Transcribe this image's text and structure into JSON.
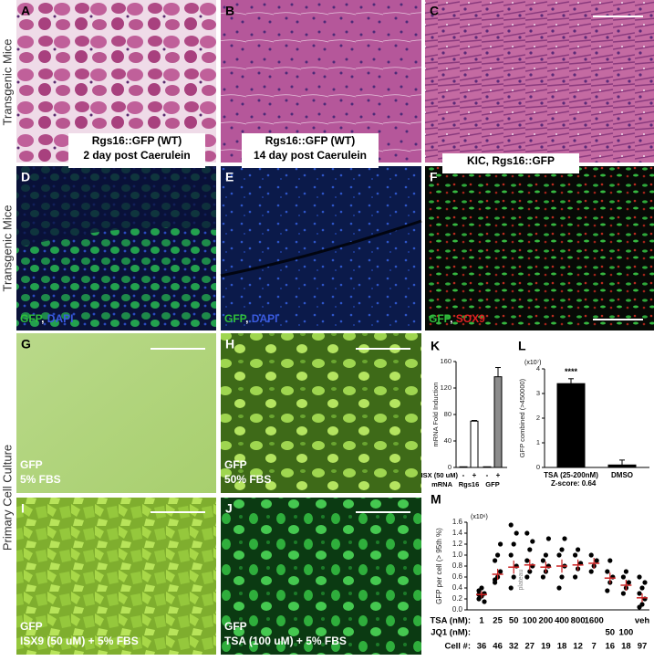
{
  "row_labels": [
    "Transgenic Mice",
    "Transgenic Mice",
    "Primary Cell Culture"
  ],
  "images": [
    {
      "letter": "A"
    },
    {
      "letter": "B"
    },
    {
      "letter": "C"
    },
    {
      "letter": "D",
      "caption": [
        "Rgs16::GFP (WT)",
        "2 day post Caerulein"
      ],
      "stain": [
        {
          "text": "GFP",
          "color": "#2fbf3a"
        },
        {
          "text": ", ",
          "color": "#ffffff"
        },
        {
          "text": "DAPI",
          "color": "#3a5adf"
        }
      ]
    },
    {
      "letter": "E",
      "caption": [
        "Rgs16::GFP (WT)",
        "14 day post Caerulein"
      ],
      "stain": [
        {
          "text": "GFP",
          "color": "#2fbf3a"
        },
        {
          "text": ", ",
          "color": "#ffffff"
        },
        {
          "text": "DAPI",
          "color": "#3a5adf"
        }
      ]
    },
    {
      "letter": "F",
      "caption": [
        "KIC, Rgs16::GFP"
      ],
      "stain": [
        {
          "text": "GFP",
          "color": "#2fbf3a"
        },
        {
          "text": ", ",
          "color": "#ffffff"
        },
        {
          "text": "SOX9",
          "color": "#e02020"
        }
      ]
    },
    {
      "letter": "G",
      "lines": [
        "GFP",
        "5% FBS"
      ]
    },
    {
      "letter": "H",
      "lines": [
        "GFP",
        "50% FBS"
      ]
    },
    {
      "letter": "I",
      "lines": [
        "GFP",
        "ISX9 (50 uM) + 5% FBS"
      ]
    },
    {
      "letter": "J",
      "lines": [
        "GFP",
        "TSA (100 uM) + 5% FBS"
      ]
    }
  ],
  "chart_data": [
    {
      "type": "bar",
      "panel": "K",
      "y_label": "mRNA Fold Induction",
      "categories": [
        "-",
        "+",
        "-",
        "+"
      ],
      "category_row_label": "ISX (50 uM)",
      "groups": [
        "Rgs16",
        "GFP"
      ],
      "group_row_label": "mRNA",
      "values": [
        1,
        70,
        1,
        137
      ],
      "errors": [
        0,
        1,
        0,
        14
      ],
      "colors": [
        "#ffffff",
        "#ffffff",
        "#8c8c8c",
        "#8c8c8c"
      ],
      "ylim": [
        0,
        160
      ],
      "yticks": [
        0,
        40,
        80,
        120,
        160
      ]
    },
    {
      "type": "bar",
      "panel": "L",
      "y_label": "GFP combined (>450000)",
      "multiplier": "(x10⁷)",
      "categories": [
        "TSA (25-200nM)",
        "DMSO"
      ],
      "note": "Z-score: 0.64",
      "annotations": [
        "****",
        null
      ],
      "values": [
        3.4,
        0.1
      ],
      "errors": [
        0.2,
        0.2
      ],
      "colors": [
        "#000000",
        "#000000"
      ],
      "ylim": [
        0,
        4
      ],
      "yticks": [
        0,
        1,
        2,
        3,
        4
      ]
    },
    {
      "type": "scatter",
      "panel": "M",
      "y_label": "GFP per cell (> 95th %)",
      "multiplier": "(x10⁶)",
      "annotation": "plateau",
      "row_labels": [
        "TSA (nM):",
        "JQ1 (nM):",
        "Cell #:"
      ],
      "tsa": [
        "1",
        "25",
        "50",
        "100",
        "200",
        "400",
        "800",
        "1600",
        null,
        null,
        "veh"
      ],
      "jq1": [
        null,
        null,
        null,
        null,
        null,
        null,
        null,
        null,
        "50",
        "100",
        null
      ],
      "cells": [
        36,
        46,
        32,
        27,
        19,
        18,
        12,
        7,
        16,
        18,
        97
      ],
      "means": [
        0.28,
        0.65,
        0.78,
        0.82,
        0.78,
        0.8,
        0.82,
        0.85,
        0.58,
        0.45,
        0.22
      ],
      "errors": [
        0.06,
        0.1,
        0.12,
        0.1,
        0.1,
        0.12,
        0.1,
        0.1,
        0.1,
        0.1,
        0.08
      ],
      "points": [
        [
          0.2,
          0.25,
          0.3,
          0.35,
          0.4,
          0.15,
          0.28
        ],
        [
          0.5,
          0.6,
          0.7,
          0.9,
          1.0,
          1.2,
          0.55
        ],
        [
          0.4,
          0.6,
          0.8,
          1.0,
          1.2,
          1.4,
          1.55
        ],
        [
          0.6,
          0.7,
          0.8,
          0.9,
          1.1,
          1.25,
          1.4
        ],
        [
          0.6,
          0.7,
          0.8,
          0.9,
          1.0,
          1.3
        ],
        [
          0.4,
          0.6,
          0.8,
          1.0,
          1.1,
          1.3
        ],
        [
          0.6,
          0.75,
          0.85,
          1.0,
          1.1
        ],
        [
          0.7,
          0.8,
          0.9,
          1.0
        ],
        [
          0.35,
          0.5,
          0.6,
          0.7,
          0.9
        ],
        [
          0.3,
          0.4,
          0.5,
          0.6,
          0.7
        ],
        [
          0.05,
          0.1,
          0.2,
          0.3,
          0.4,
          0.5,
          0.6
        ]
      ],
      "point_color": "#000000",
      "mean_color": "#cc2222",
      "ylim": [
        0,
        1.6
      ],
      "yticks": [
        {
          "value": 0,
          "label": "0.0"
        },
        0.2,
        0.4,
        0.6,
        0.8,
        {
          "value": 1,
          "label": "1.0"
        },
        1.2,
        1.4,
        1.6
      ]
    }
  ]
}
